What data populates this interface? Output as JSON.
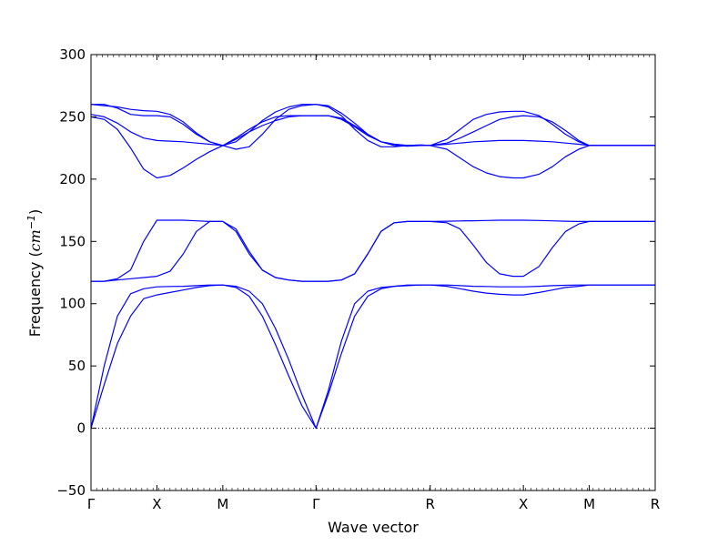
{
  "chart_data": {
    "type": "line",
    "xlabel": "Wave vector",
    "ylabel_main": "Frequency (",
    "ylabel_unit": "cm",
    "ylabel_exp": "−1",
    "ylabel_close": ")",
    "ylim": [
      -50,
      300
    ],
    "yticks": [
      -50,
      0,
      50,
      100,
      150,
      200,
      250,
      300
    ],
    "x_ticks": [
      {
        "label": "Γ",
        "x": 0
      },
      {
        "label": "X",
        "x": 0.5
      },
      {
        "label": "M",
        "x": 1.0
      },
      {
        "label": "Γ",
        "x": 1.707
      },
      {
        "label": "R",
        "x": 2.573
      },
      {
        "label": "X",
        "x": 3.28
      },
      {
        "label": "M",
        "x": 3.78
      },
      {
        "label": "R",
        "x": 4.28
      }
    ],
    "xlim": [
      0,
      4.28
    ],
    "grid": false,
    "zero_line": true,
    "line_color": "#0000ff",
    "series": [
      {
        "x": [
          0,
          0.1,
          0.2,
          0.3,
          0.4,
          0.5,
          0.6,
          0.7,
          0.8,
          0.9,
          1.0,
          1.1,
          1.2,
          1.3,
          1.4,
          1.5,
          1.6,
          1.707,
          1.8,
          1.9,
          2.0,
          2.1,
          2.2,
          2.3,
          2.4,
          2.5,
          2.573,
          2.7,
          2.8,
          2.9,
          3.0,
          3.1,
          3.2,
          3.28,
          3.4,
          3.5,
          3.6,
          3.7,
          3.78,
          3.9,
          4.0,
          4.1,
          4.2,
          4.28
        ],
        "y": [
          0,
          35,
          68,
          90,
          104,
          107,
          109,
          111,
          113,
          114.5,
          115,
          114,
          110,
          100,
          80,
          55,
          27,
          0,
          27,
          60,
          90,
          106,
          112,
          114,
          115,
          115,
          115,
          114,
          112,
          110,
          108.5,
          107.5,
          107,
          107,
          109,
          111,
          113,
          114,
          115,
          115,
          115,
          115,
          115,
          115
        ]
      },
      {
        "x": [
          0,
          0.1,
          0.2,
          0.3,
          0.4,
          0.5,
          0.6,
          0.7,
          0.8,
          0.9,
          1.0,
          1.1,
          1.2,
          1.3,
          1.4,
          1.5,
          1.6,
          1.707,
          1.8,
          1.9,
          2.0,
          2.1,
          2.2,
          2.3,
          2.4,
          2.5,
          2.573,
          2.7,
          2.8,
          2.9,
          3.0,
          3.1,
          3.2,
          3.28,
          3.4,
          3.5,
          3.6,
          3.7,
          3.78,
          3.9,
          4.0,
          4.1,
          4.2,
          4.28
        ],
        "y": [
          0,
          50,
          90,
          108,
          112,
          113.5,
          113.8,
          114,
          114.5,
          115,
          115,
          113,
          106,
          90,
          67,
          42,
          18,
          0,
          30,
          70,
          100,
          110,
          113,
          114,
          114.5,
          115,
          115,
          115,
          114.5,
          114,
          113.8,
          113.5,
          113.5,
          113.5,
          114,
          114.5,
          114.8,
          115,
          115,
          115,
          115,
          115,
          115,
          115
        ]
      },
      {
        "x": [
          0,
          0.1,
          0.2,
          0.3,
          0.4,
          0.5,
          0.6,
          0.7,
          0.8,
          0.9,
          1.0,
          1.1,
          1.2,
          1.3,
          1.4,
          1.5,
          1.6,
          1.707,
          1.8,
          1.9,
          2.0,
          2.1,
          2.2,
          2.3,
          2.4,
          2.5,
          2.573,
          2.7,
          2.8,
          2.9,
          3.0,
          3.1,
          3.2,
          3.28,
          3.4,
          3.5,
          3.6,
          3.7,
          3.78,
          3.9,
          4.0,
          4.1,
          4.2,
          4.28
        ],
        "y": [
          118,
          118,
          119,
          120,
          121,
          122,
          126,
          140,
          158,
          166,
          166,
          160,
          142,
          127,
          121,
          119,
          118,
          118,
          118,
          119,
          124,
          140,
          158,
          165,
          166,
          166,
          166,
          165,
          160,
          147,
          133,
          124,
          122,
          122,
          130,
          145,
          158,
          164,
          166,
          166,
          166,
          166,
          166,
          166
        ]
      },
      {
        "x": [
          0,
          0.1,
          0.2,
          0.3,
          0.4,
          0.5,
          0.6,
          0.7,
          0.8,
          0.9,
          1.0,
          1.1,
          1.2,
          1.3,
          1.4,
          1.5,
          1.6,
          1.707,
          1.8,
          1.9,
          2.0,
          2.1,
          2.2,
          2.3,
          2.4,
          2.5,
          2.573,
          2.7,
          2.8,
          2.9,
          3.0,
          3.1,
          3.2,
          3.28,
          3.4,
          3.5,
          3.6,
          3.7,
          3.78,
          3.9,
          4.0,
          4.1,
          4.2,
          4.28
        ],
        "y": [
          118,
          118,
          120,
          127,
          150,
          167,
          167,
          167,
          166.5,
          166,
          166,
          158,
          140,
          127,
          121,
          119,
          118,
          118,
          118,
          119,
          124,
          140,
          158,
          165,
          166,
          166,
          166,
          166.2,
          166.4,
          166.6,
          166.8,
          167,
          167,
          167,
          166.8,
          166.5,
          166.2,
          166,
          166,
          166,
          166,
          166,
          166,
          166
        ]
      },
      {
        "x": [
          0,
          0.1,
          0.2,
          0.3,
          0.4,
          0.5,
          0.6,
          0.7,
          0.8,
          0.9,
          1.0,
          1.1,
          1.2,
          1.3,
          1.4,
          1.5,
          1.6,
          1.707,
          1.8,
          1.9,
          2.0,
          2.1,
          2.2,
          2.3,
          2.4,
          2.5,
          2.573,
          2.7,
          2.8,
          2.9,
          3.0,
          3.1,
          3.2,
          3.28,
          3.4,
          3.5,
          3.6,
          3.7,
          3.78,
          3.9,
          4.0,
          4.1,
          4.2,
          4.28
        ],
        "y": [
          250,
          248,
          240,
          225,
          208,
          201,
          203,
          209,
          216,
          222,
          227,
          232,
          238,
          243,
          247,
          250,
          251,
          251,
          251,
          248,
          242,
          235,
          230,
          228,
          227,
          227,
          227,
          224,
          217,
          210,
          205,
          202,
          201,
          201,
          204,
          210,
          218,
          224,
          227,
          227,
          227,
          227,
          227,
          227
        ]
      },
      {
        "x": [
          0,
          0.1,
          0.2,
          0.3,
          0.4,
          0.5,
          0.6,
          0.7,
          0.8,
          0.9,
          1.0,
          1.1,
          1.2,
          1.3,
          1.4,
          1.5,
          1.6,
          1.707,
          1.8,
          1.9,
          2.0,
          2.1,
          2.2,
          2.3,
          2.4,
          2.5,
          2.573,
          2.7,
          2.8,
          2.9,
          3.0,
          3.1,
          3.2,
          3.28,
          3.4,
          3.5,
          3.6,
          3.7,
          3.78,
          3.9,
          4.0,
          4.1,
          4.2,
          4.28
        ],
        "y": [
          252,
          250,
          245,
          238,
          233,
          231,
          230.5,
          230,
          229,
          228,
          227,
          233,
          240,
          246,
          250,
          251,
          251,
          251,
          251,
          249,
          243,
          236,
          230,
          227,
          226.5,
          227,
          227,
          228,
          229,
          230,
          230.5,
          231,
          231,
          231,
          230.5,
          230,
          229,
          228,
          227,
          227,
          227,
          227,
          227,
          227
        ]
      },
      {
        "x": [
          0,
          0.1,
          0.2,
          0.3,
          0.4,
          0.5,
          0.6,
          0.7,
          0.8,
          0.9,
          1.0,
          1.1,
          1.2,
          1.3,
          1.4,
          1.5,
          1.6,
          1.707,
          1.8,
          1.9,
          2.0,
          2.1,
          2.2,
          2.3,
          2.4,
          2.5,
          2.573,
          2.7,
          2.8,
          2.9,
          3.0,
          3.1,
          3.2,
          3.28,
          3.4,
          3.5,
          3.6,
          3.7,
          3.78,
          3.9,
          4.0,
          4.1,
          4.2,
          4.28
        ],
        "y": [
          260,
          259,
          258,
          256,
          255,
          254.5,
          252,
          246,
          237,
          230,
          227,
          224,
          226,
          236,
          248,
          256,
          259,
          260,
          258,
          251,
          240,
          231,
          226,
          226,
          227,
          227.5,
          227,
          232,
          240,
          248,
          252,
          254,
          254.5,
          254.5,
          251,
          244,
          236,
          230,
          227,
          227,
          227,
          227,
          227,
          227
        ]
      },
      {
        "x": [
          0,
          0.1,
          0.2,
          0.3,
          0.4,
          0.5,
          0.6,
          0.7,
          0.8,
          0.9,
          1.0,
          1.1,
          1.2,
          1.3,
          1.4,
          1.5,
          1.6,
          1.707,
          1.8,
          1.9,
          2.0,
          2.1,
          2.2,
          2.3,
          2.4,
          2.5,
          2.573,
          2.7,
          2.8,
          2.9,
          3.0,
          3.1,
          3.2,
          3.28,
          3.4,
          3.5,
          3.6,
          3.7,
          3.78,
          3.9,
          4.0,
          4.1,
          4.2,
          4.28
        ],
        "y": [
          260,
          260,
          257,
          252,
          251,
          251,
          250,
          244,
          236,
          230,
          227,
          230,
          238,
          247,
          254,
          258,
          260,
          260,
          259,
          253,
          245,
          236,
          230,
          228,
          227,
          227,
          227,
          229,
          233,
          238,
          243,
          248,
          250,
          251,
          250,
          246,
          239,
          231,
          227,
          227,
          227,
          227,
          227,
          227
        ]
      }
    ]
  }
}
